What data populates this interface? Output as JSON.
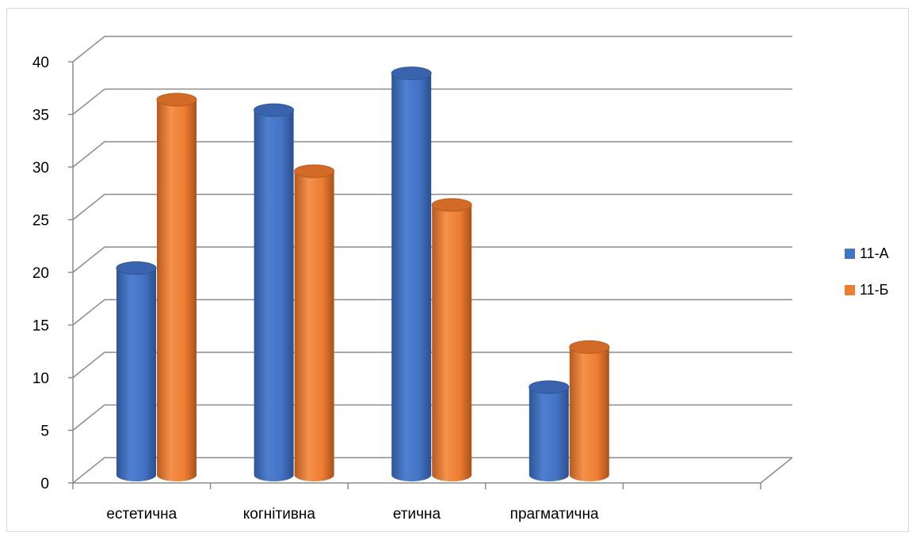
{
  "chart_data": {
    "type": "bar",
    "title": "",
    "xlabel": "",
    "ylabel": "",
    "categories": [
      "естетична",
      "когнітивна",
      "етична",
      "прагматична",
      ""
    ],
    "series": [
      {
        "name": "11-А",
        "values": [
          19.5,
          34.5,
          38,
          8.2,
          null
        ],
        "color": "#4472C4"
      },
      {
        "name": "11-Б",
        "values": [
          35.5,
          28.7,
          25.5,
          12,
          null
        ],
        "color": "#ED7D31"
      }
    ],
    "ylim": [
      0,
      40
    ],
    "yticks": [
      "0",
      "5",
      "10",
      "15",
      "20",
      "25",
      "30",
      "35",
      "40"
    ],
    "grid": true,
    "legend_position": "right",
    "style": "3d-cylinder"
  }
}
